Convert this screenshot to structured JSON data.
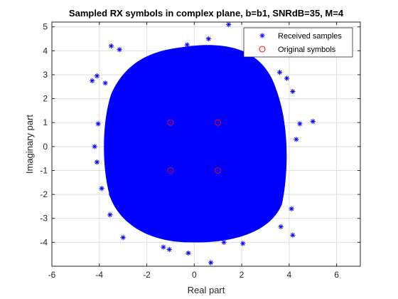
{
  "chart_data": {
    "type": "scatter",
    "title": "Sampled RX symbols in complex plane, b=b1, SNRdB=35, M=4",
    "xlabel": "Real part",
    "ylabel": "Imaginary part",
    "xlim": [
      -6,
      7
    ],
    "ylim": [
      -5,
      5.2
    ],
    "xticks": [
      "-6",
      "-4",
      "-2",
      "0",
      "2",
      "4",
      "6"
    ],
    "yticks": [
      "-4",
      "-3",
      "-2",
      "-1",
      "0",
      "1",
      "2",
      "3",
      "4",
      "5"
    ],
    "grid": true,
    "legend_position": "top-right",
    "series": [
      {
        "name": "Received samples",
        "marker": "asterisk",
        "color": "#0000ff",
        "points": [
          [
            1.45,
            5.1
          ],
          [
            0.6,
            4.5
          ],
          [
            -0.3,
            4.25
          ],
          [
            -3.5,
            4.2
          ],
          [
            -3.15,
            4.05
          ],
          [
            -0.2,
            4.0
          ],
          [
            2.9,
            4.0
          ],
          [
            -4.3,
            2.75
          ],
          [
            -4.1,
            2.95
          ],
          [
            -3.75,
            2.65
          ],
          [
            3.6,
            3.1
          ],
          [
            3.9,
            2.85
          ],
          [
            4.15,
            2.3
          ],
          [
            4.45,
            0.95
          ],
          [
            5.0,
            1.05
          ],
          [
            4.3,
            0.3
          ],
          [
            -4.05,
            0.95
          ],
          [
            -4.2,
            0.0
          ],
          [
            -4.1,
            -0.65
          ],
          [
            -3.9,
            -1.75
          ],
          [
            -3.5,
            -2.0
          ],
          [
            -3.55,
            -2.85
          ],
          [
            -3.0,
            -3.8
          ],
          [
            4.1,
            -2.6
          ],
          [
            3.65,
            -3.35
          ],
          [
            4.15,
            -3.7
          ],
          [
            -1.3,
            -4.2
          ],
          [
            -1.05,
            -4.3
          ],
          [
            -0.25,
            -4.45
          ],
          [
            0.7,
            -4.85
          ],
          [
            1.25,
            -4.0
          ],
          [
            2.05,
            -4.05
          ]
        ]
      },
      {
        "name": "Original symbols",
        "marker": "circle",
        "color": "#ff0000",
        "points": [
          [
            -1,
            1
          ],
          [
            1,
            1
          ],
          [
            -1,
            -1
          ],
          [
            1,
            -1
          ]
        ]
      }
    ]
  }
}
